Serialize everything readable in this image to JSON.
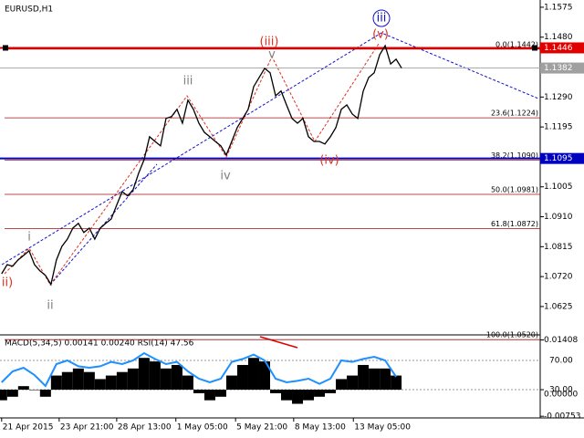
{
  "chart_data": [
    {
      "type": "line",
      "title": "EURUSD,H1",
      "color": "#000000",
      "values": [
        1.0729,
        1.0758,
        1.0753,
        1.0773,
        1.0787,
        1.0802,
        1.0758,
        1.0738,
        1.0724,
        1.0695,
        1.0773,
        1.0816,
        1.0839,
        1.0874,
        1.0889,
        1.086,
        1.0874,
        1.0839,
        1.0874,
        1.0889,
        1.0903,
        1.0947,
        1.099,
        1.0976,
        1.0996,
        1.1048,
        1.1091,
        1.1164,
        1.1149,
        1.1135,
        1.1222,
        1.1228,
        1.1251,
        1.1207,
        1.128,
        1.1251,
        1.1207,
        1.1178,
        1.1164,
        1.1149,
        1.1135,
        1.1106,
        1.1149,
        1.1193,
        1.1222,
        1.1251,
        1.1323,
        1.1352,
        1.1381,
        1.1367,
        1.1294,
        1.1309,
        1.1265,
        1.1222,
        1.1207,
        1.1222,
        1.1164,
        1.1149,
        1.1149,
        1.1141,
        1.1164,
        1.1193,
        1.1251,
        1.1265,
        1.1236,
        1.1222,
        1.1309,
        1.1352,
        1.1367,
        1.1424,
        1.1453,
        1.1395,
        1.141,
        1.1382
      ],
      "xlim": [
        -0.3,
        98.3
      ],
      "xticks": [
        {
          "value": 0,
          "label": "21 Apr 2015"
        },
        {
          "value": 10.5,
          "label": "23 Apr 21:00"
        },
        {
          "value": 21,
          "label": "28 Apr 13:00"
        },
        {
          "value": 31.8,
          "label": "1 May 05:00"
        },
        {
          "value": 42.7,
          "label": "5 May 21:00"
        },
        {
          "value": 53.3,
          "label": "8 May 13:00"
        },
        {
          "value": 64.2,
          "label": "13 May 05:00"
        }
      ],
      "ylim": [
        1.0535,
        1.1598
      ],
      "yticks": [
        1.1575,
        {
          "value": 1.148,
          "label": "1.1480"
        },
        {
          "value": 1.129,
          "label": "1.1290"
        },
        1.1195,
        1.1005,
        {
          "value": 1.091,
          "label": "1.0910"
        },
        1.0815,
        {
          "value": 1.072,
          "label": "1.0720"
        },
        1.0625
      ],
      "levels": [
        {
          "value": 1.1446,
          "color": "#e00000"
        },
        {
          "value": 1.1382,
          "color": "#a0a0a0"
        },
        {
          "value": 1.1095,
          "color": "#0000c0"
        }
      ],
      "fibonacci": [
        {
          "value": 1.1442,
          "label": "0.0(1.1442)"
        },
        {
          "value": 1.1224,
          "label": "23.6(1.1224)"
        },
        {
          "value": 1.109,
          "label": "38.2(1.1090)"
        },
        {
          "value": 1.0981,
          "label": "50.0(1.0981)"
        },
        {
          "value": 1.0872,
          "label": "61.8(1.0872)"
        },
        {
          "value": 1.052,
          "label": "100.0(1.0520)"
        }
      ],
      "annotations": [
        {
          "text": "ii)",
          "color": "#e0301e"
        },
        {
          "text": "i",
          "color": "#808080"
        },
        {
          "text": "ii",
          "color": "#808080"
        },
        {
          "text": "iii",
          "color": "#808080"
        },
        {
          "text": "iv",
          "color": "#808080"
        },
        {
          "text": "v",
          "color": "#808080"
        },
        {
          "text": "(iii)",
          "color": "#e0301e"
        },
        {
          "text": "(iv)",
          "color": "#e0301e"
        },
        {
          "text": "(v)",
          "color": "#e0301e"
        },
        {
          "text": "iii",
          "color": "#1010d0"
        }
      ]
    },
    {
      "type": "bar",
      "title": "MACD(5,34,5) 0.00141 0.00240 RSI(14) 47.56",
      "x": [
        0,
        2,
        4,
        6,
        8,
        10,
        12,
        14,
        16,
        18,
        20,
        22,
        24,
        26,
        28,
        30,
        32,
        34,
        36,
        38,
        40,
        42,
        44,
        46,
        48,
        50,
        52,
        54,
        56,
        58,
        60,
        62,
        64,
        66,
        68,
        70,
        72
      ],
      "ylim": [
        -0.008,
        0.015
      ],
      "yticks": [
        0.01408,
        {
          "value": 0,
          "label": "0.00000"
        },
        -0.00753
      ],
      "y2lim": [
        -8.75,
        102.5
      ],
      "y2ticks": [
        {
          "value": 70,
          "label": "70.00"
        },
        {
          "value": 30,
          "label": "30.00"
        }
      ],
      "grid": true,
      "series": [
        {
          "color": "#000000",
          "values": [
            -0.003,
            -0.002,
            0.001,
            0.0,
            -0.002,
            0.004,
            0.005,
            0.006,
            0.005,
            0.003,
            0.004,
            0.005,
            0.006,
            0.009,
            0.008,
            0.006,
            0.007,
            0.004,
            -0.001,
            -0.003,
            -0.002,
            0.004,
            0.007,
            0.009,
            0.008,
            -0.001,
            -0.003,
            -0.004,
            -0.003,
            -0.002,
            -0.001,
            0.003,
            0.004,
            0.007,
            0.006,
            0.006,
            0.004
          ]
        },
        {
          "color": "#1e90ff",
          "axis": "y2",
          "values": [
            40,
            55,
            60,
            50,
            35,
            65,
            70,
            62,
            60,
            62,
            68,
            65,
            70,
            80,
            72,
            65,
            68,
            55,
            45,
            40,
            45,
            68,
            72,
            78,
            70,
            45,
            40,
            42,
            45,
            38,
            45,
            70,
            68,
            72,
            75,
            70,
            47.56
          ]
        }
      ]
    }
  ]
}
